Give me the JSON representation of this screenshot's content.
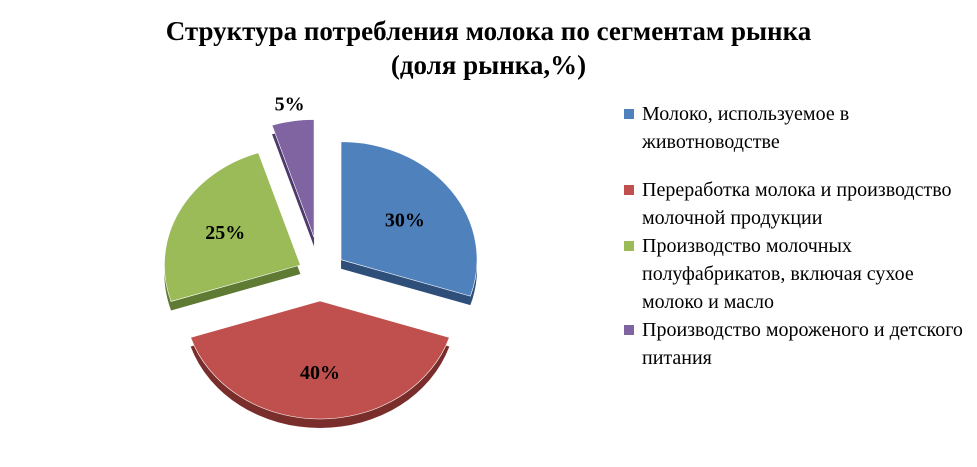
{
  "chart_data": {
    "type": "pie",
    "title": "Структура потребления молока по сегментам рынка",
    "subtitle": "(доля рынка,%)",
    "legend_position": "right",
    "style": "3d-exploded",
    "categories": [
      "Молоко, используемое в животноводстве",
      "Переработка молока и производство молочной продукции",
      "Производство молочных полуфабрикатов, включая сухое молоко и масло",
      "Производство мороженого и детского питания"
    ],
    "values": [
      30,
      40,
      25,
      5
    ],
    "data_labels": [
      "30%",
      "40%",
      "25%",
      "5%"
    ],
    "colors": [
      "#4F81BD",
      "#C0504D",
      "#9BBB59",
      "#8064A2"
    ],
    "side_colors": [
      "#2E4F7A",
      "#7A2E2C",
      "#5F7A33",
      "#4E3A6B"
    ]
  }
}
